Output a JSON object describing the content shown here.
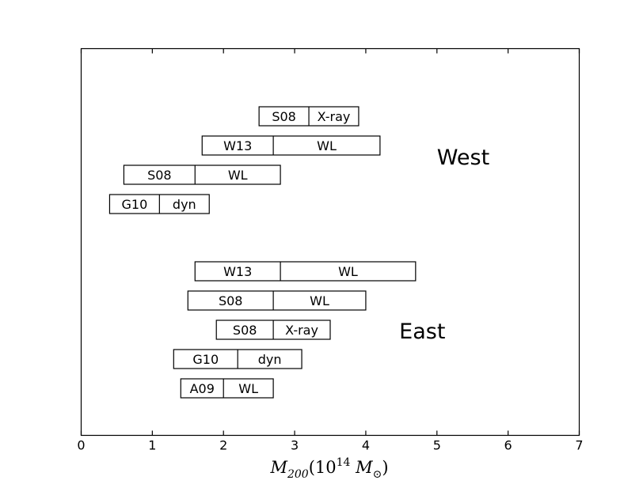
{
  "chart_data": {
    "type": "range_boxes",
    "title": "",
    "xlabel": "M_{200}(10^{14} M_⊙)",
    "xlabel_parts": {
      "symbol": "M",
      "symbol_sub": "200",
      "open": "(10",
      "power": "14",
      "unit": " M",
      "unit_sub": "⊙",
      "close": ")"
    },
    "ylabel": "",
    "xlim": [
      0,
      7
    ],
    "xticks": [
      0,
      1,
      2,
      3,
      4,
      5,
      6,
      7
    ],
    "xtick_labels": [
      "0",
      "1",
      "2",
      "3",
      "4",
      "5",
      "6",
      "7"
    ],
    "grid": false,
    "legend": "none",
    "groups": [
      {
        "name": "West",
        "entries": [
          {
            "source": "S08",
            "method": "X-ray",
            "min": 2.5,
            "split": 3.2,
            "max": 3.9
          },
          {
            "source": "W13",
            "method": "WL",
            "min": 1.7,
            "split": 2.7,
            "max": 4.2
          },
          {
            "source": "S08",
            "method": "WL",
            "min": 0.6,
            "split": 1.6,
            "max": 2.8
          },
          {
            "source": "G10",
            "method": "dyn",
            "min": 0.4,
            "split": 1.1,
            "max": 1.8
          }
        ]
      },
      {
        "name": "East",
        "entries": [
          {
            "source": "W13",
            "method": "WL",
            "min": 1.6,
            "split": 2.8,
            "max": 4.7
          },
          {
            "source": "S08",
            "method": "WL",
            "min": 1.5,
            "split": 2.7,
            "max": 4.0
          },
          {
            "source": "S08",
            "method": "X-ray",
            "min": 1.9,
            "split": 2.7,
            "max": 3.5
          },
          {
            "source": "G10",
            "method": "dyn",
            "min": 1.3,
            "split": 2.2,
            "max": 3.1
          },
          {
            "source": "A09",
            "method": "WL",
            "min": 1.4,
            "split": 2.0,
            "max": 2.7
          }
        ]
      }
    ],
    "colors": {
      "stroke": "#000000",
      "fill": "#ffffff",
      "background": "#ffffff"
    }
  }
}
